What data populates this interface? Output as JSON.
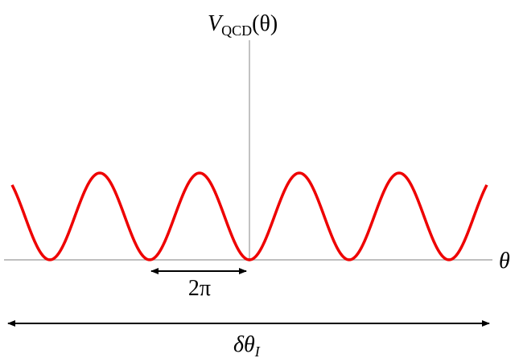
{
  "axis_labels": {
    "y": {
      "main": "V",
      "subscript": "QCD",
      "suffix": "(θ)"
    },
    "x": "θ"
  },
  "annotations": {
    "period": "2π",
    "width": {
      "main": "δθ",
      "subscript": "I"
    }
  }
}
